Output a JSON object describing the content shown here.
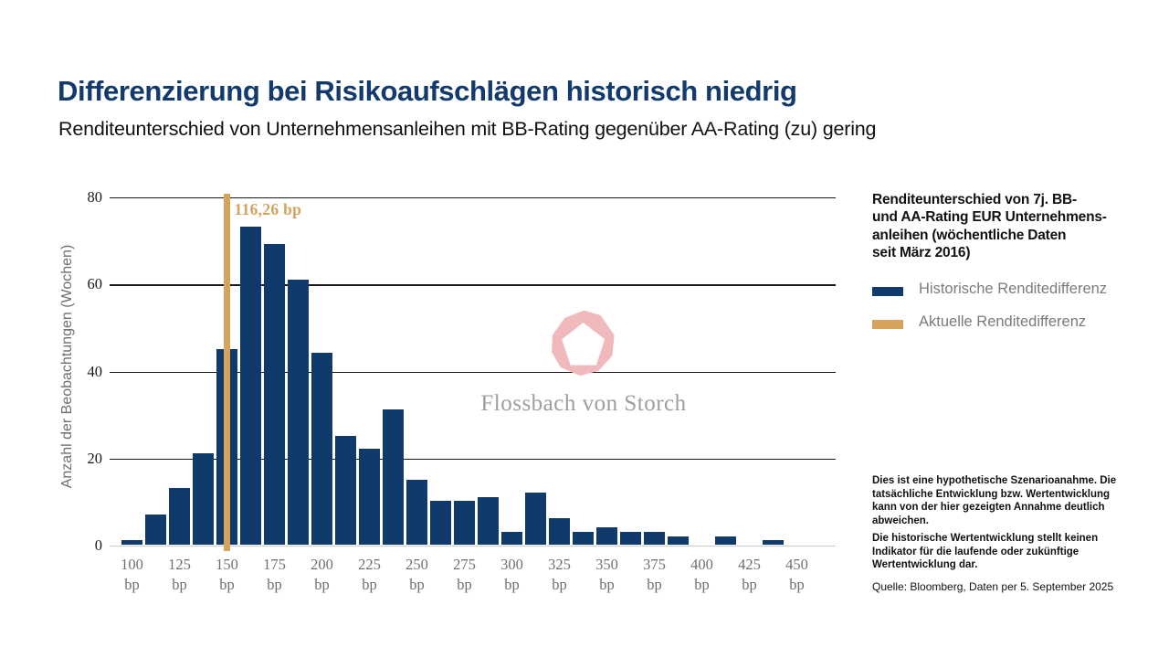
{
  "slide": {
    "title": "Differenzierung bei Risikoaufschlägen historisch niedrig",
    "subtitle": "Renditeunterschied von Unternehmensanleihen mit BB-Rating gegenüber AA-Rating (zu) gering"
  },
  "chart_data": {
    "type": "bar",
    "subtype": "histogram",
    "ylabel": "Anzahl der Beobachtungen (Wochen)",
    "ylim": [
      0,
      80
    ],
    "y_ticks": [
      0,
      20,
      40,
      60,
      80
    ],
    "x_unit": "bp",
    "x_tick_labels": [
      "100",
      "125",
      "150",
      "175",
      "200",
      "225",
      "250",
      "275",
      "300",
      "325",
      "350",
      "375",
      "400",
      "425",
      "450"
    ],
    "bin_centers_bp": [
      100,
      112.5,
      125,
      137.5,
      150,
      162.5,
      175,
      187.5,
      200,
      212.5,
      225,
      237.5,
      250,
      262.5,
      275,
      287.5,
      300,
      312.5,
      325,
      337.5,
      350,
      362.5,
      375,
      387.5,
      400,
      412.5,
      425,
      437.5,
      450
    ],
    "values": [
      1,
      7,
      13,
      21,
      45,
      73,
      69,
      61,
      44,
      25,
      22,
      31,
      15,
      10,
      10,
      11,
      3,
      12,
      6,
      3,
      4,
      3,
      3,
      2,
      0,
      2,
      0,
      1,
      0
    ],
    "marker": {
      "label": "116,26 bp",
      "value_bp": 116.26,
      "aligned_tick_index": 1
    },
    "grid": "horizontal",
    "colors": {
      "bars": "#113A6C",
      "marker": "#D6A35C",
      "gridline": "#1A1A1A",
      "baseline": "#C9C9C9"
    }
  },
  "legend": {
    "description": "Renditeunterschied von 7j. BB-\nund AA-Rating EUR Unternehmens-\nanleihen (wöchentliche Daten\nseit März 2016)",
    "items": [
      {
        "label": "Historische Renditedifferenz",
        "color": "#113A6C"
      },
      {
        "label": "Aktuelle Renditedifferenz",
        "color": "#D6A35C"
      }
    ]
  },
  "watermark": {
    "brand": "Flossbach von Storch"
  },
  "footnotes": {
    "disclaimer1": "Dies ist eine hypothetische Szenarioanahme. Die\ntatsächliche Entwicklung bzw. Wertentwicklung\nkann von der hier gezeigten Annahme deutlich\nabweichen.",
    "disclaimer2": "Die historische Wertentwicklung stellt keinen\nIndikator für die laufende oder zukünftige\nWertentwicklung dar.",
    "source": "Quelle: Bloomberg, Daten per 5. September 2025"
  }
}
